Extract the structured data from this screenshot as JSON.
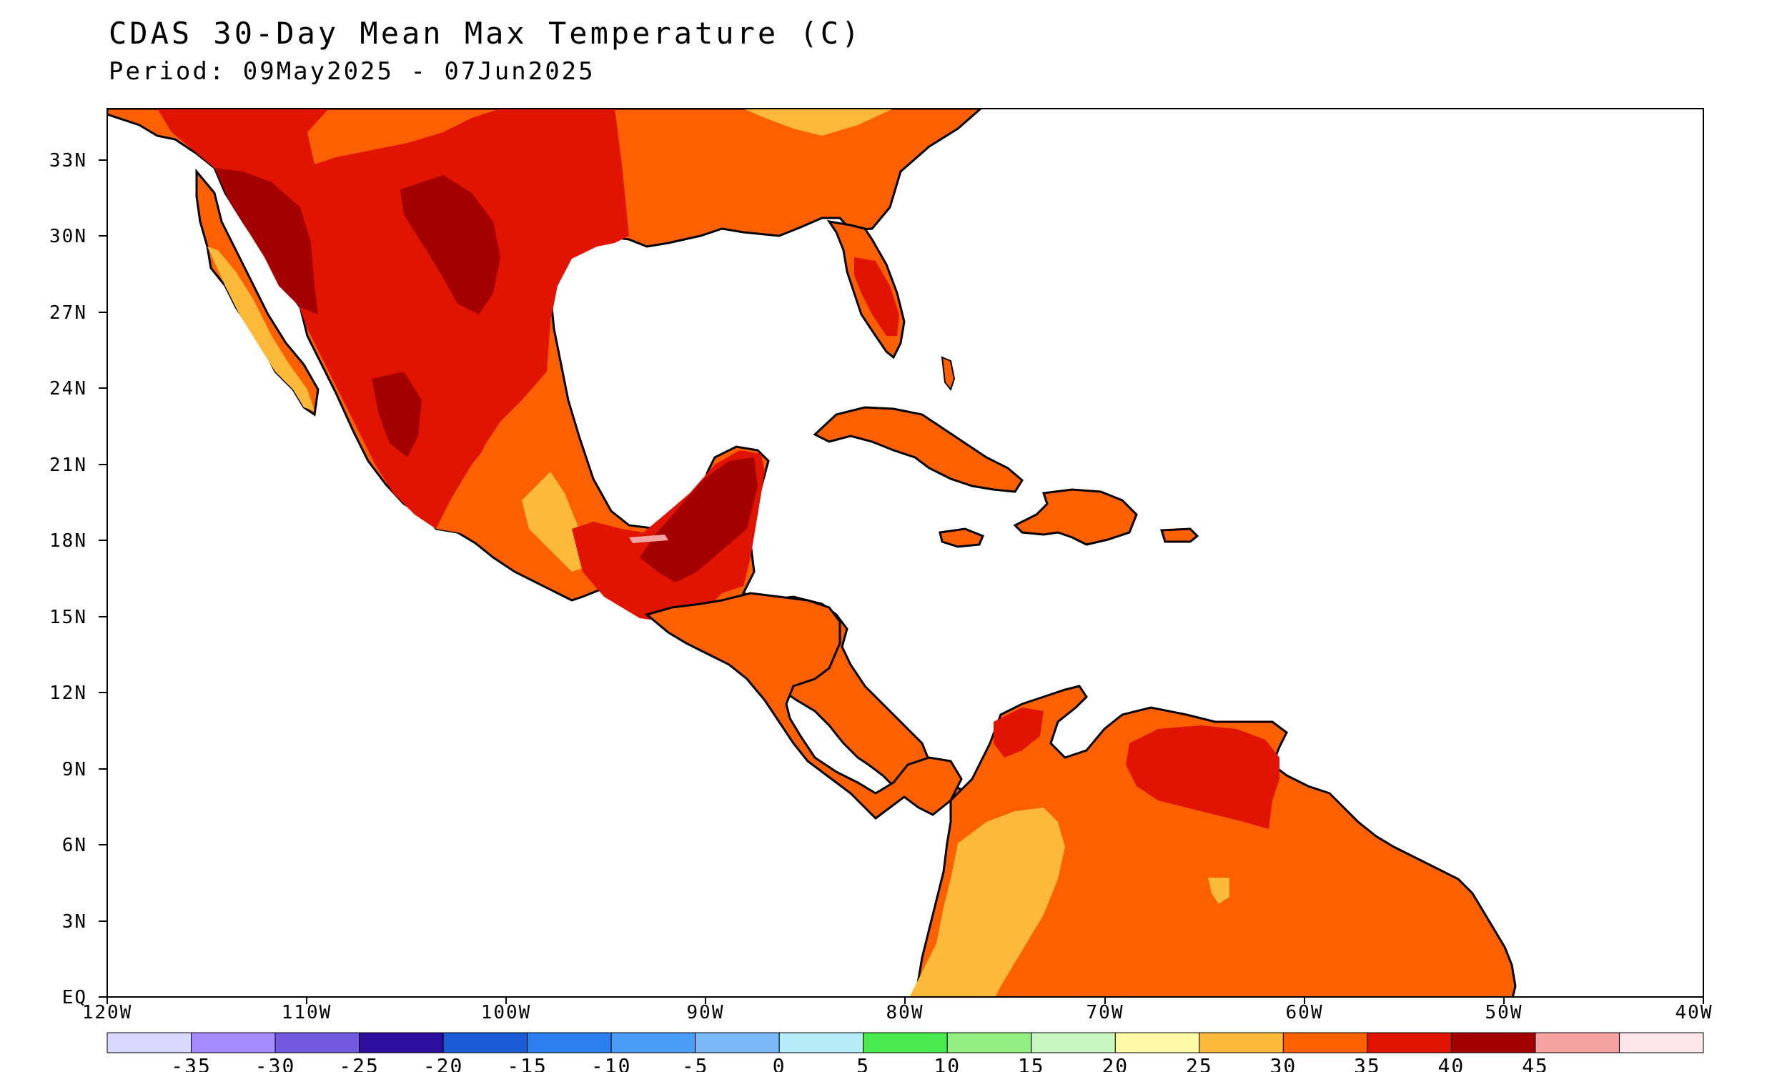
{
  "title": "CDAS 30-Day Mean Max Temperature (C)",
  "subtitle": "Period: 09May2025 - 07Jun2025",
  "map": {
    "lon_range": [
      -120,
      -40
    ],
    "lat_range": [
      0,
      35
    ],
    "lat_ticks": [
      "EQ",
      "3N",
      "6N",
      "9N",
      "12N",
      "15N",
      "18N",
      "21N",
      "24N",
      "27N",
      "30N",
      "33N"
    ],
    "lon_ticks": [
      "120W",
      "110W",
      "100W",
      "90W",
      "80W",
      "70W",
      "60W",
      "50W",
      "40W"
    ],
    "ocean_color": "#ffffff"
  },
  "colorbar": {
    "colors": [
      "#d9d9ff",
      "#a48cff",
      "#7159e0",
      "#2d0e9c",
      "#1b5cd4",
      "#2d7ff0",
      "#4a9cf7",
      "#7ab8f7",
      "#b6ecf7",
      "#49ea4d",
      "#92ee80",
      "#c8f8bf",
      "#fffaa6",
      "#fdb93a",
      "#fd6000",
      "#e01400",
      "#a50000",
      "#f5a2a2",
      "#fde6ea"
    ],
    "labels": [
      "-35",
      "-30",
      "-25",
      "-20",
      "-15",
      "-10",
      "-5",
      "0",
      "5",
      "10",
      "15",
      "20",
      "25",
      "30",
      "35",
      "40",
      "45"
    ]
  }
}
